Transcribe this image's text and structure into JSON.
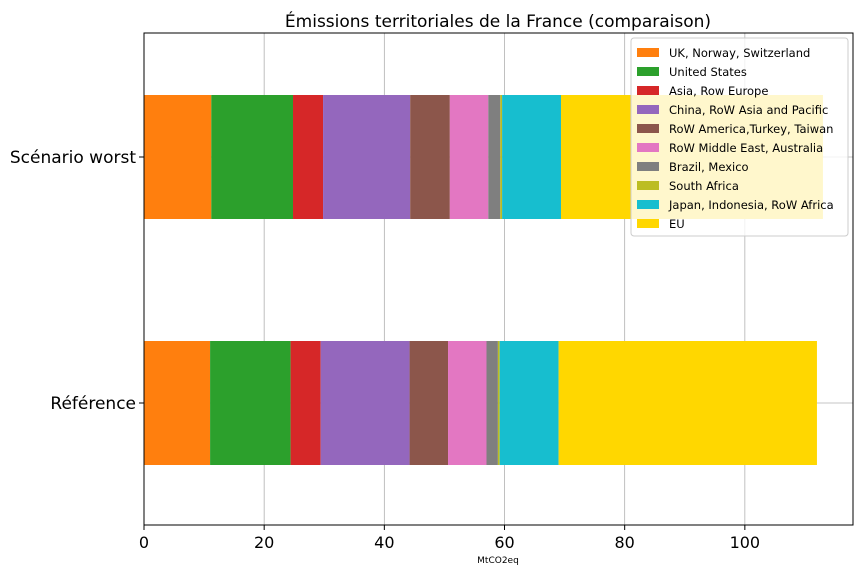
{
  "chart_data": {
    "type": "bar",
    "orientation": "horizontal",
    "stacked": true,
    "title": "Émissions territoriales de la France (comparaison)",
    "xlabel": "MtCO2eq",
    "ylabel": "",
    "xlim": [
      0,
      118
    ],
    "xticks": [
      0,
      20,
      40,
      60,
      80,
      100
    ],
    "grid": true,
    "legend_position": "top-right",
    "categories": [
      "Référence",
      "Scénario worst"
    ],
    "series": [
      {
        "name": "UK, Norway, Switzerland",
        "color": "#ff7f0e",
        "values": [
          11.0,
          11.2
        ]
      },
      {
        "name": "United States",
        "color": "#2ca02c",
        "values": [
          13.4,
          13.6
        ]
      },
      {
        "name": "Asia, Row Europe",
        "color": "#d62728",
        "values": [
          5.0,
          5.0
        ]
      },
      {
        "name": "China, RoW Asia and Pacific",
        "color": "#9467bd",
        "values": [
          14.8,
          14.5
        ]
      },
      {
        "name": "RoW America,Turkey, Taiwan",
        "color": "#8c564b",
        "values": [
          6.4,
          6.6
        ]
      },
      {
        "name": "RoW Middle East, Australia",
        "color": "#e377c2",
        "values": [
          6.4,
          6.4
        ]
      },
      {
        "name": "Brazil, Mexico",
        "color": "#7f7f7f",
        "values": [
          1.9,
          2.0
        ]
      },
      {
        "name": "South Africa",
        "color": "#bcbd22",
        "values": [
          0.3,
          0.3
        ]
      },
      {
        "name": "Japan, Indonesia, RoW Africa",
        "color": "#17becf",
        "values": [
          9.8,
          9.8
        ]
      },
      {
        "name": "EU",
        "color": "#ffd700",
        "values": [
          43.0,
          43.6
        ]
      }
    ]
  }
}
